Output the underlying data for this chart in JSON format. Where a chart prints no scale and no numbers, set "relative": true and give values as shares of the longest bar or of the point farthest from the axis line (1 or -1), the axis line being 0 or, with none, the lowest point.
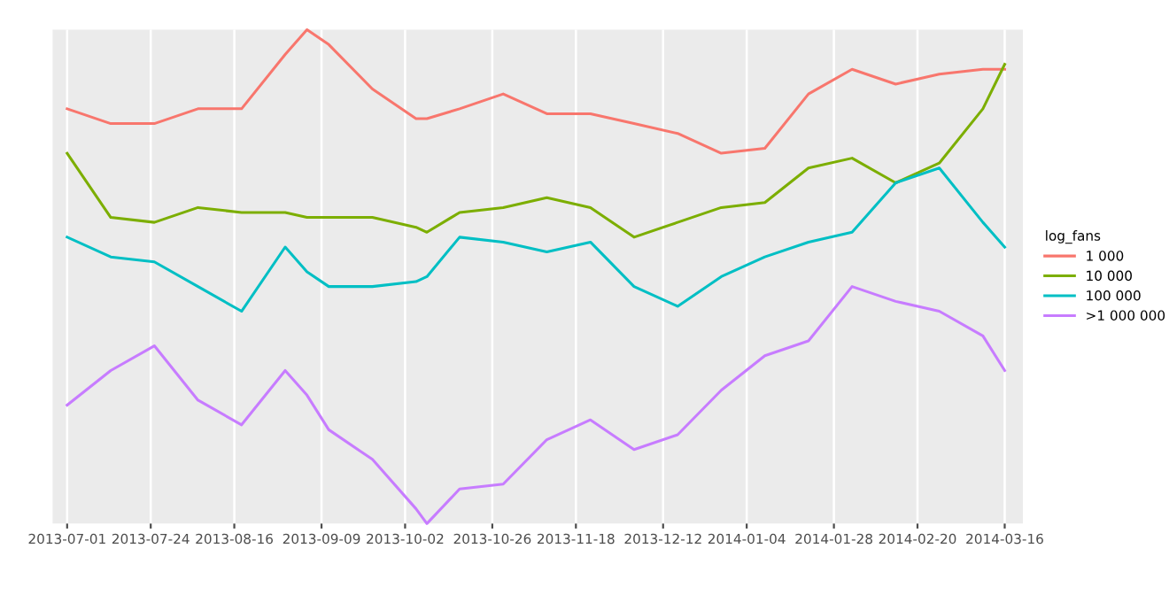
{
  "chart_data": {
    "type": "line",
    "relative": true,
    "legend_title": "log_fans",
    "legend": "right",
    "grid": "x",
    "marker": "none",
    "line_style": "solid",
    "x": [
      "2013-07-01",
      "2013-07-13",
      "2013-07-25",
      "2013-08-06",
      "2013-08-18",
      "2013-08-30",
      "2013-09-05",
      "2013-09-11",
      "2013-09-23",
      "2013-10-05",
      "2013-10-08",
      "2013-10-17",
      "2013-10-29",
      "2013-11-10",
      "2013-11-22",
      "2013-12-04",
      "2013-12-16",
      "2013-12-28",
      "2014-01-09",
      "2014-01-21",
      "2014-02-02",
      "2014-02-14",
      "2014-02-26",
      "2014-03-10",
      "2014-03-16"
    ],
    "xlim": [
      "2013-06-27",
      "2014-03-21"
    ],
    "xticks": [
      "2013-07-01",
      "2013-07-24",
      "2013-08-16",
      "2013-09-09",
      "2013-10-02",
      "2013-10-26",
      "2013-11-18",
      "2013-12-12",
      "2014-01-04",
      "2014-01-28",
      "2014-02-20",
      "2014-03-16"
    ],
    "series": [
      {
        "name": "1 000",
        "color": "#f8766d",
        "values": [
          0.84,
          0.81,
          0.81,
          0.84,
          0.84,
          0.95,
          1.0,
          0.97,
          0.88,
          0.82,
          0.82,
          0.84,
          0.87,
          0.83,
          0.83,
          0.81,
          0.79,
          0.75,
          0.76,
          0.87,
          0.92,
          0.89,
          0.91,
          0.92,
          0.92
        ]
      },
      {
        "name": "10 000",
        "color": "#7cae00",
        "values": [
          0.75,
          0.62,
          0.61,
          0.64,
          0.63,
          0.63,
          0.62,
          0.62,
          0.62,
          0.6,
          0.59,
          0.63,
          0.64,
          0.66,
          0.64,
          0.58,
          0.61,
          0.64,
          0.65,
          0.72,
          0.74,
          0.69,
          0.73,
          0.84,
          0.93
        ]
      },
      {
        "name": "100 000",
        "color": "#00bfc4",
        "values": [
          0.58,
          0.54,
          0.53,
          0.48,
          0.43,
          0.56,
          0.51,
          0.48,
          0.48,
          0.49,
          0.5,
          0.58,
          0.57,
          0.55,
          0.57,
          0.48,
          0.44,
          0.5,
          0.54,
          0.57,
          0.59,
          0.69,
          0.72,
          0.61,
          0.56
        ]
      },
      {
        "name": ">1 000 000",
        "color": "#c77cff",
        "values": [
          0.24,
          0.31,
          0.36,
          0.25,
          0.2,
          0.31,
          0.26,
          0.19,
          0.13,
          0.03,
          0.0,
          0.07,
          0.08,
          0.17,
          0.21,
          0.15,
          0.18,
          0.27,
          0.34,
          0.37,
          0.48,
          0.45,
          0.43,
          0.38,
          0.31
        ]
      }
    ]
  }
}
